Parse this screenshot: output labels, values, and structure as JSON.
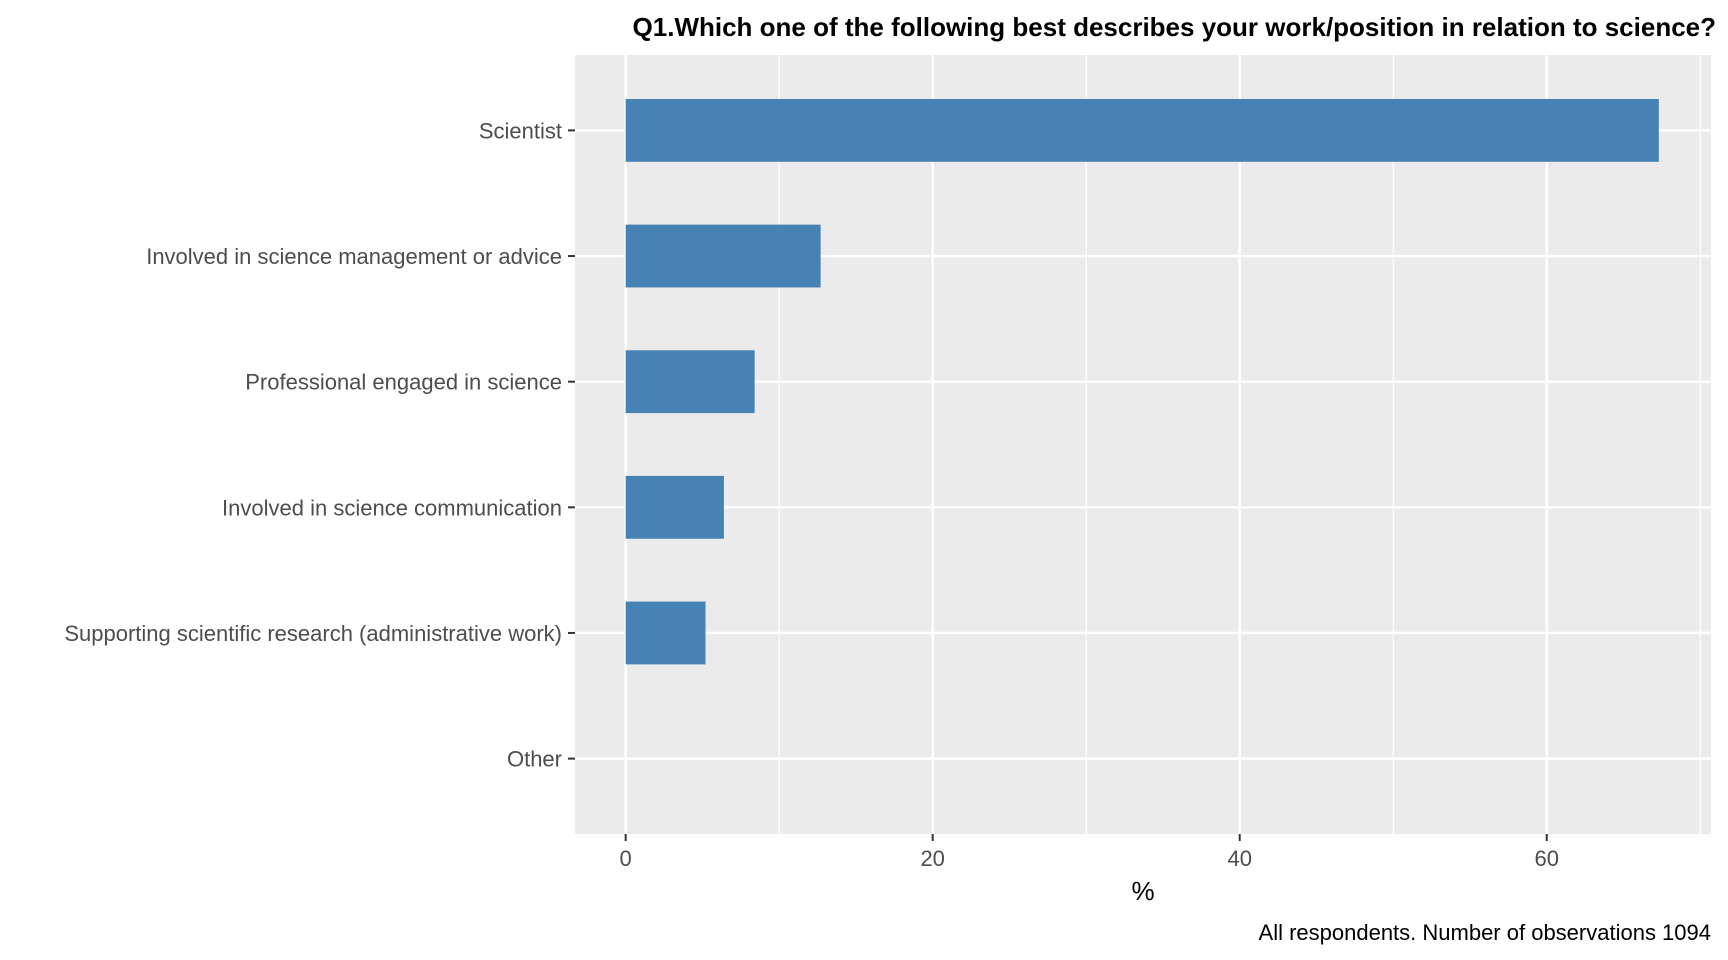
{
  "chart_data": {
    "type": "bar",
    "orientation": "horizontal",
    "title": "Q1.Which one of the following best describes your work/position in relation to science?",
    "xlabel": "%",
    "ylabel": "",
    "caption": "All respondents. Number of observations 1094",
    "categories": [
      "Scientist",
      "Involved in science management or advice",
      "Professional engaged in science",
      "Involved in science communication",
      "Supporting scientific research (administrative work)",
      "Other"
    ],
    "values": [
      67.3,
      12.7,
      8.4,
      6.4,
      5.2,
      0
    ],
    "xlim": [
      -3.3,
      70.7
    ],
    "x_ticks": [
      0,
      20,
      40,
      60
    ],
    "x_minor_ticks": [
      10,
      30,
      50,
      70
    ],
    "grid": true,
    "legend": "none",
    "colors": {
      "bar": "#4682b4",
      "panel": "#ebebeb",
      "grid": "#ffffff",
      "text": "#4d4d4d"
    }
  }
}
